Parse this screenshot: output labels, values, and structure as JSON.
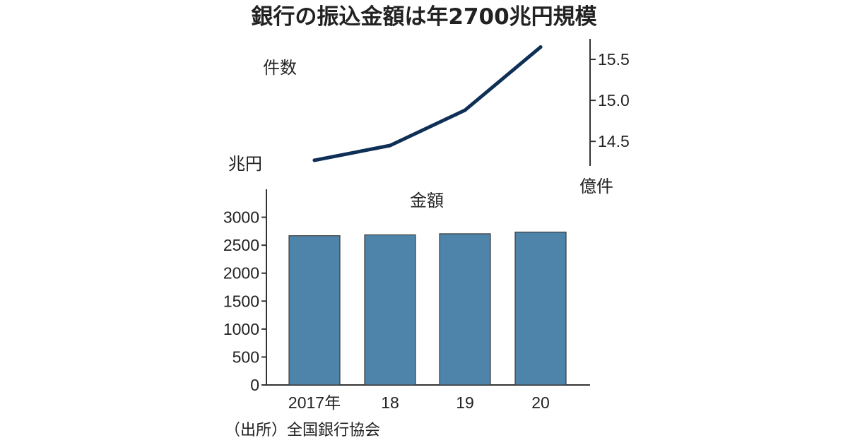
{
  "title": "銀行の振込金額は年2700兆円規模",
  "source": "（出所）全国銀行協会",
  "colors": {
    "line": "#0e2f56",
    "bar": "#4f84aa",
    "axis": "#333333"
  },
  "chart_data": [
    {
      "type": "line",
      "series_label": "件数",
      "unit": "億件",
      "x": [
        "2017年",
        "18",
        "19",
        "20"
      ],
      "values": [
        14.27,
        14.45,
        14.88,
        15.65
      ],
      "ylim": [
        14.2,
        15.75
      ],
      "yticks": [
        "14.5",
        "15.0",
        "15.5"
      ],
      "ytick_values": [
        14.5,
        15.0,
        15.5
      ],
      "axis_side": "right"
    },
    {
      "type": "bar",
      "series_label": "金額",
      "unit": "兆円",
      "categories": [
        "2017年",
        "18",
        "19",
        "20"
      ],
      "values": [
        2670,
        2685,
        2705,
        2735
      ],
      "ylim": [
        0,
        3500
      ],
      "yticks": [
        "0",
        "500",
        "1000",
        "1500",
        "2000",
        "2500",
        "3000"
      ],
      "ytick_values": [
        0,
        500,
        1000,
        1500,
        2000,
        2500,
        3000
      ],
      "axis_side": "left"
    }
  ]
}
